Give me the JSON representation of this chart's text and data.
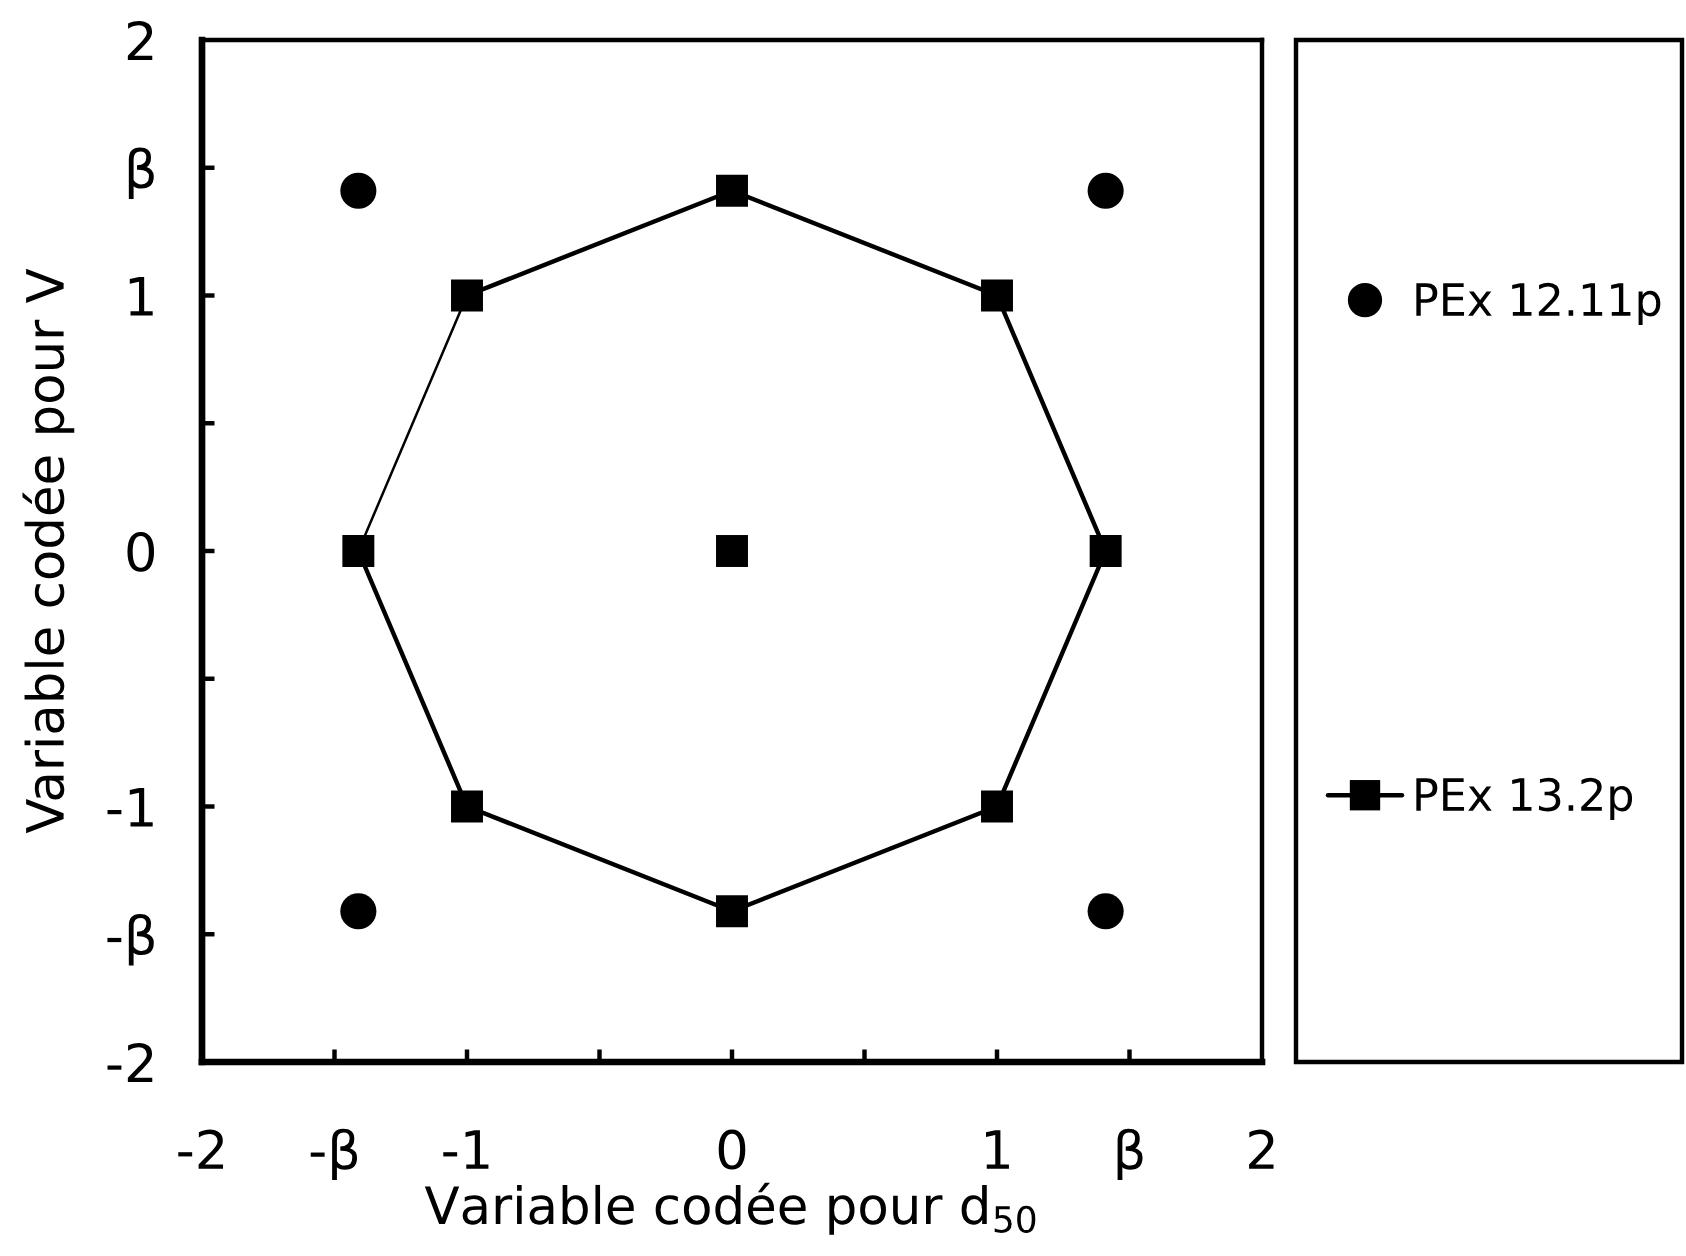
{
  "chart_data": {
    "type": "scatter",
    "xlabel": "Variable codée pour d$_{50}$",
    "ylabel": "Variable codée pour V",
    "xlim": [
      -2,
      2
    ],
    "ylim": [
      -2,
      2
    ],
    "xticks": [
      -2,
      {
        "value": -1.5,
        "label": "-β"
      },
      -1,
      {
        "value": -0.5,
        "label": null
      },
      0,
      {
        "value": 0.5,
        "label": null
      },
      1,
      {
        "value": 1.5,
        "label": "β"
      },
      2
    ],
    "yticks": [
      -2,
      {
        "value": -1.5,
        "label": "-β"
      },
      -1,
      {
        "value": -0.5,
        "label": null
      },
      0,
      {
        "value": 0.5,
        "label": null
      },
      1,
      {
        "value": 1.5,
        "label": "β"
      },
      2
    ],
    "legend": "right",
    "series": [
      {
        "name": "PEx 12.11p",
        "color": "#000000",
        "marker": "circle",
        "x": [
          -1.41,
          1.41,
          -1.41,
          1.41
        ],
        "values": [
          1.41,
          1.41,
          -1.41,
          -1.41
        ]
      },
      {
        "name": "PEx 13.2p",
        "type": "line",
        "color": "#000000",
        "marker": "square",
        "line_style": "solid",
        "x": [
          -1.41,
          -1,
          0,
          1,
          1.41,
          1,
          0,
          -1
        ],
        "values": [
          0,
          -1,
          -1.41,
          -1,
          0,
          1,
          1.41,
          1
        ]
      },
      {
        "type": "scatter",
        "color": "#000000",
        "marker": "square",
        "x": [
          0
        ],
        "values": [
          0
        ]
      },
      {
        "type": "line",
        "color": "#000000",
        "marker": "none",
        "line_style": "solid",
        "x": [
          -1,
          -1.41
        ],
        "values": [
          1,
          0
        ]
      }
    ]
  }
}
